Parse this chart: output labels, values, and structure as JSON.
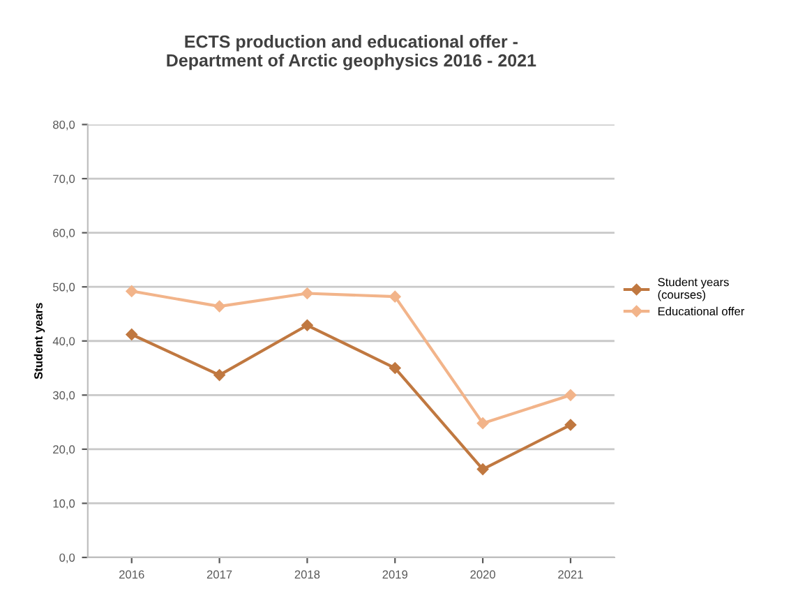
{
  "chart_data": {
    "type": "line",
    "title": "ECTS production and educational offer -\nDepartment of Arctic geophysics 2016 - 2021",
    "ylabel": "Student years",
    "categories": [
      "2016",
      "2017",
      "2018",
      "2019",
      "2020",
      "2021"
    ],
    "series": [
      {
        "name": "Student years\n(courses)",
        "color": "#c07840",
        "values": [
          41.2,
          33.7,
          42.9,
          35.0,
          16.3,
          24.5
        ]
      },
      {
        "name": "Educational offer",
        "color": "#f2b48a",
        "values": [
          49.2,
          46.4,
          48.8,
          48.2,
          24.8,
          30.0
        ]
      }
    ],
    "ylim": [
      0,
      80
    ],
    "yticks": [
      {
        "value": 0,
        "label": "0,0"
      },
      {
        "value": 10,
        "label": "10,0"
      },
      {
        "value": 20,
        "label": "20,0"
      },
      {
        "value": 30,
        "label": "30,0"
      },
      {
        "value": 40,
        "label": "40,0"
      },
      {
        "value": 50,
        "label": "50,0"
      },
      {
        "value": 60,
        "label": "60,0"
      },
      {
        "value": 70,
        "label": "70,0"
      },
      {
        "value": 80,
        "label": "80,0"
      }
    ],
    "grid": "y",
    "legend": "right",
    "marker": "diamond",
    "line_style": "solid"
  }
}
